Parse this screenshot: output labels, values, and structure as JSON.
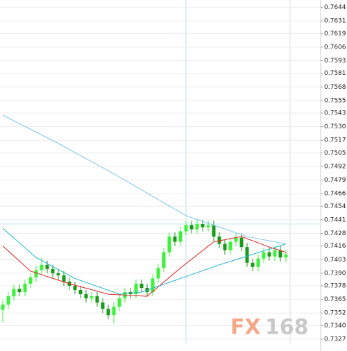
{
  "chart_data": {
    "type": "candlestick",
    "open": [
      0.7355,
      0.736,
      0.7368,
      0.7375,
      0.7372,
      0.738,
      0.7386,
      0.7393,
      0.7398,
      0.7394,
      0.739,
      0.7388,
      0.7382,
      0.7378,
      0.7374,
      0.737,
      0.7366,
      0.7368,
      0.7362,
      0.7356,
      0.735,
      0.7358,
      0.7366,
      0.7372,
      0.737,
      0.738,
      0.7376,
      0.7372,
      0.7385,
      0.7395,
      0.741,
      0.7425,
      0.742,
      0.743,
      0.7436,
      0.7432,
      0.7437,
      0.7434,
      0.7436,
      0.7425,
      0.7418,
      0.7412,
      0.742,
      0.7424,
      0.7415,
      0.74,
      0.7396,
      0.7404,
      0.741,
      0.7406,
      0.7412,
      0.7405
    ],
    "high": [
      0.7364,
      0.7372,
      0.7379,
      0.7379,
      0.7384,
      0.739,
      0.7397,
      0.7405,
      0.7402,
      0.7398,
      0.7394,
      0.7392,
      0.7386,
      0.7382,
      0.7378,
      0.7374,
      0.7372,
      0.7372,
      0.7366,
      0.736,
      0.7362,
      0.737,
      0.7376,
      0.7376,
      0.7384,
      0.7384,
      0.738,
      0.7389,
      0.7399,
      0.7414,
      0.7429,
      0.7429,
      0.7434,
      0.744,
      0.744,
      0.7441,
      0.7441,
      0.744,
      0.744,
      0.7429,
      0.7422,
      0.7424,
      0.7428,
      0.7428,
      0.7419,
      0.7404,
      0.7408,
      0.7414,
      0.7414,
      0.7416,
      0.7416,
      0.7412
    ],
    "low": [
      0.7343,
      0.7356,
      0.7364,
      0.7368,
      0.7368,
      0.7376,
      0.7382,
      0.7389,
      0.739,
      0.7386,
      0.7384,
      0.7378,
      0.7374,
      0.737,
      0.7366,
      0.7362,
      0.7362,
      0.7358,
      0.7352,
      0.7346,
      0.7342,
      0.7354,
      0.7362,
      0.7366,
      0.7366,
      0.7372,
      0.7368,
      0.7368,
      0.7381,
      0.7391,
      0.7406,
      0.7416,
      0.7416,
      0.7426,
      0.7428,
      0.7428,
      0.743,
      0.743,
      0.7421,
      0.7414,
      0.7408,
      0.7408,
      0.7416,
      0.7411,
      0.7396,
      0.7392,
      0.7392,
      0.74,
      0.7402,
      0.7402,
      0.7401,
      0.7401
    ],
    "close": [
      0.736,
      0.7368,
      0.7375,
      0.7372,
      0.738,
      0.7386,
      0.7393,
      0.7398,
      0.7394,
      0.739,
      0.7388,
      0.7382,
      0.7378,
      0.7374,
      0.737,
      0.7366,
      0.7368,
      0.7362,
      0.7356,
      0.735,
      0.7358,
      0.7366,
      0.7372,
      0.737,
      0.738,
      0.7376,
      0.7372,
      0.7385,
      0.7395,
      0.741,
      0.7425,
      0.742,
      0.743,
      0.7436,
      0.7432,
      0.7437,
      0.7434,
      0.7436,
      0.7425,
      0.7418,
      0.7412,
      0.742,
      0.7424,
      0.7415,
      0.74,
      0.7396,
      0.7404,
      0.741,
      0.7406,
      0.7412,
      0.7405,
      0.7408
    ],
    "up_color": "#3cf03c",
    "down_color": "#1a9a1a",
    "series": [
      {
        "color": "#e02020",
        "x": [
          0,
          5,
          12,
          19,
          26,
          32,
          38,
          43,
          48,
          51
        ],
        "values": [
          0.7416,
          0.7392,
          0.738,
          0.737,
          0.7368,
          0.7395,
          0.742,
          0.7425,
          0.7415,
          0.741
        ]
      },
      {
        "color": "#1fb3c8",
        "x": [
          0,
          6,
          13,
          21,
          25,
          32,
          39,
          45,
          51
        ],
        "values": [
          0.7433,
          0.7405,
          0.7385,
          0.737,
          0.7372,
          0.7385,
          0.7398,
          0.7408,
          0.7418
        ]
      },
      {
        "color": "#7ec8e8",
        "x": [
          0,
          10,
          20,
          33,
          44,
          51
        ],
        "values": [
          0.7541,
          0.7514,
          0.7485,
          0.7445,
          0.7425,
          0.7418
        ]
      }
    ],
    "ylim": [
      0.7323,
      0.7651
    ],
    "yticks": [
      0.7644,
      0.7631,
      0.7619,
      0.7606,
      0.7593,
      0.7581,
      0.7568,
      0.7555,
      0.7543,
      {
        "value": 0.753,
        "label": "0.7530"
      },
      0.7517,
      0.7505,
      0.7492,
      0.7479,
      0.7466,
      0.7454,
      0.7441,
      0.7428,
      0.7416,
      0.7403,
      {
        "value": 0.739,
        "label": "0.7390"
      },
      0.7378,
      0.7365,
      0.7352,
      {
        "value": 0.734,
        "label": "0.7340"
      },
      0.7327
    ],
    "grid": true,
    "watermark": [
      "FX",
      "168"
    ]
  }
}
